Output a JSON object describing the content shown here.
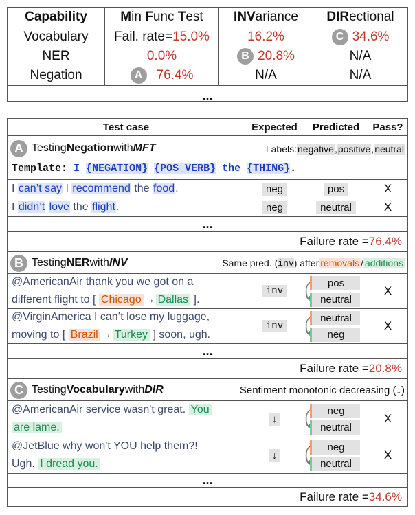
{
  "capability_table": {
    "headers": {
      "capability": "Capability",
      "mft_bold1": "M",
      "mft_rest1": "in ",
      "mft_bold2": "F",
      "mft_rest2": "unc ",
      "mft_bold3": "T",
      "mft_rest3": "est",
      "inv_bold": "INV",
      "inv_rest": "ariance",
      "dir_bold": "DIR",
      "dir_rest": "ectional"
    },
    "rows": [
      {
        "capability": "Vocabulary",
        "mft_prefix": "Fail. rate=",
        "mft": "15.0%",
        "inv": "16.2%",
        "dir": "34.6%"
      },
      {
        "capability": "NER",
        "mft_prefix": "",
        "mft": "0.0%",
        "inv": "20.8%",
        "dir": "N/A"
      },
      {
        "capability": "Negation",
        "mft_prefix": "",
        "mft": "76.4%",
        "inv": "N/A",
        "dir": "N/A"
      }
    ],
    "ellipsis": "...",
    "badges": {
      "a": "A",
      "b": "B",
      "c": "C"
    }
  },
  "test_table": {
    "headers": {
      "test_case": "Test case",
      "expected": "Expected",
      "predicted": "Predicted",
      "pass": "Pass?"
    },
    "section_a": {
      "badge": "A",
      "title_pre": "Testing ",
      "title_cap": "Negation",
      "title_mid": " with ",
      "title_type": "MFT",
      "labels_pre": "Labels: ",
      "label1": "negative",
      "label1_sep": ", ",
      "label2": "positive",
      "label2_sep": ", ",
      "label3": "neutral",
      "template_label": "Template:",
      "template_I": "I",
      "template_neg": "{NEGATION}",
      "template_pos": "{POS_VERB}",
      "template_the": "the",
      "template_thing": "{THING}",
      "template_dot": ".",
      "rows": [
        {
          "p1": "I ",
          "h1": "can’t say",
          "p2": " I ",
          "h2": "recommend",
          "p3": " the ",
          "h3": "food",
          "p4": ".",
          "expected": "neg",
          "predicted": "pos",
          "pass": "X"
        },
        {
          "p1": "I ",
          "h1": "didn’t",
          "p2": " ",
          "h2": "love",
          "p3": " the ",
          "h3": "flight",
          "p4": ".",
          "expected": "neg",
          "predicted": "neutral",
          "pass": "X"
        }
      ],
      "ellipsis": "...",
      "failure_label": "Failure rate = ",
      "failure_value": "76.4%"
    },
    "section_b": {
      "badge": "B",
      "title_pre": "Testing ",
      "title_cap": "NER",
      "title_mid": " with ",
      "title_type": "INV",
      "note_pre": "Same pred. (",
      "note_code": "inv",
      "note_mid": ") after ",
      "note_removals": "removals",
      "note_sep": " / ",
      "note_additions": "additions",
      "rows": [
        {
          "l1": "@AmericanAir thank you we got on a",
          "l2_pre": "different flight to [ ",
          "removed": "Chicago",
          "arrow": "→",
          "added": "Dallas",
          "l2_post": " ].",
          "expected": "inv",
          "pred_before": "pos",
          "pred_after": "neutral",
          "pass": "X"
        },
        {
          "l1": "@VirginAmerica I can’t lose my luggage,",
          "l2_pre": "moving to [ ",
          "removed": "Brazil",
          "arrow": "→",
          "added": "Turkey",
          "l2_post": " ] soon, ugh.",
          "expected": "inv",
          "pred_before": "neutral",
          "pred_after": "neg",
          "pass": "X"
        }
      ],
      "ellipsis": "...",
      "failure_label": "Failure rate = ",
      "failure_value": "20.8%"
    },
    "section_c": {
      "badge": "C",
      "title_pre": "Testing ",
      "title_cap": "Vocabulary",
      "title_mid": " with ",
      "title_type": "DIR",
      "note": "Sentiment monotonic decreasing (↓)",
      "rows": [
        {
          "l1_pre": "@AmericanAir service wasn't great. ",
          "l1_hl": "You",
          "l2_hl": "are lame.",
          "l2_post": "",
          "expected": "↓",
          "pred_before": "neg",
          "pred_after": "neutral",
          "pass": "X"
        },
        {
          "l1_pre": "@JetBlue why won't YOU help them?!",
          "l1_hl": "",
          "l2_pre": "Ugh. ",
          "l2_hl": "I dread you.",
          "l2_post": "",
          "expected": "↓",
          "pred_before": "neg",
          "pred_after": "neutral",
          "pass": "X"
        }
      ],
      "ellipsis": "...",
      "failure_label": "Failure rate = ",
      "failure_value": "34.6%"
    }
  }
}
